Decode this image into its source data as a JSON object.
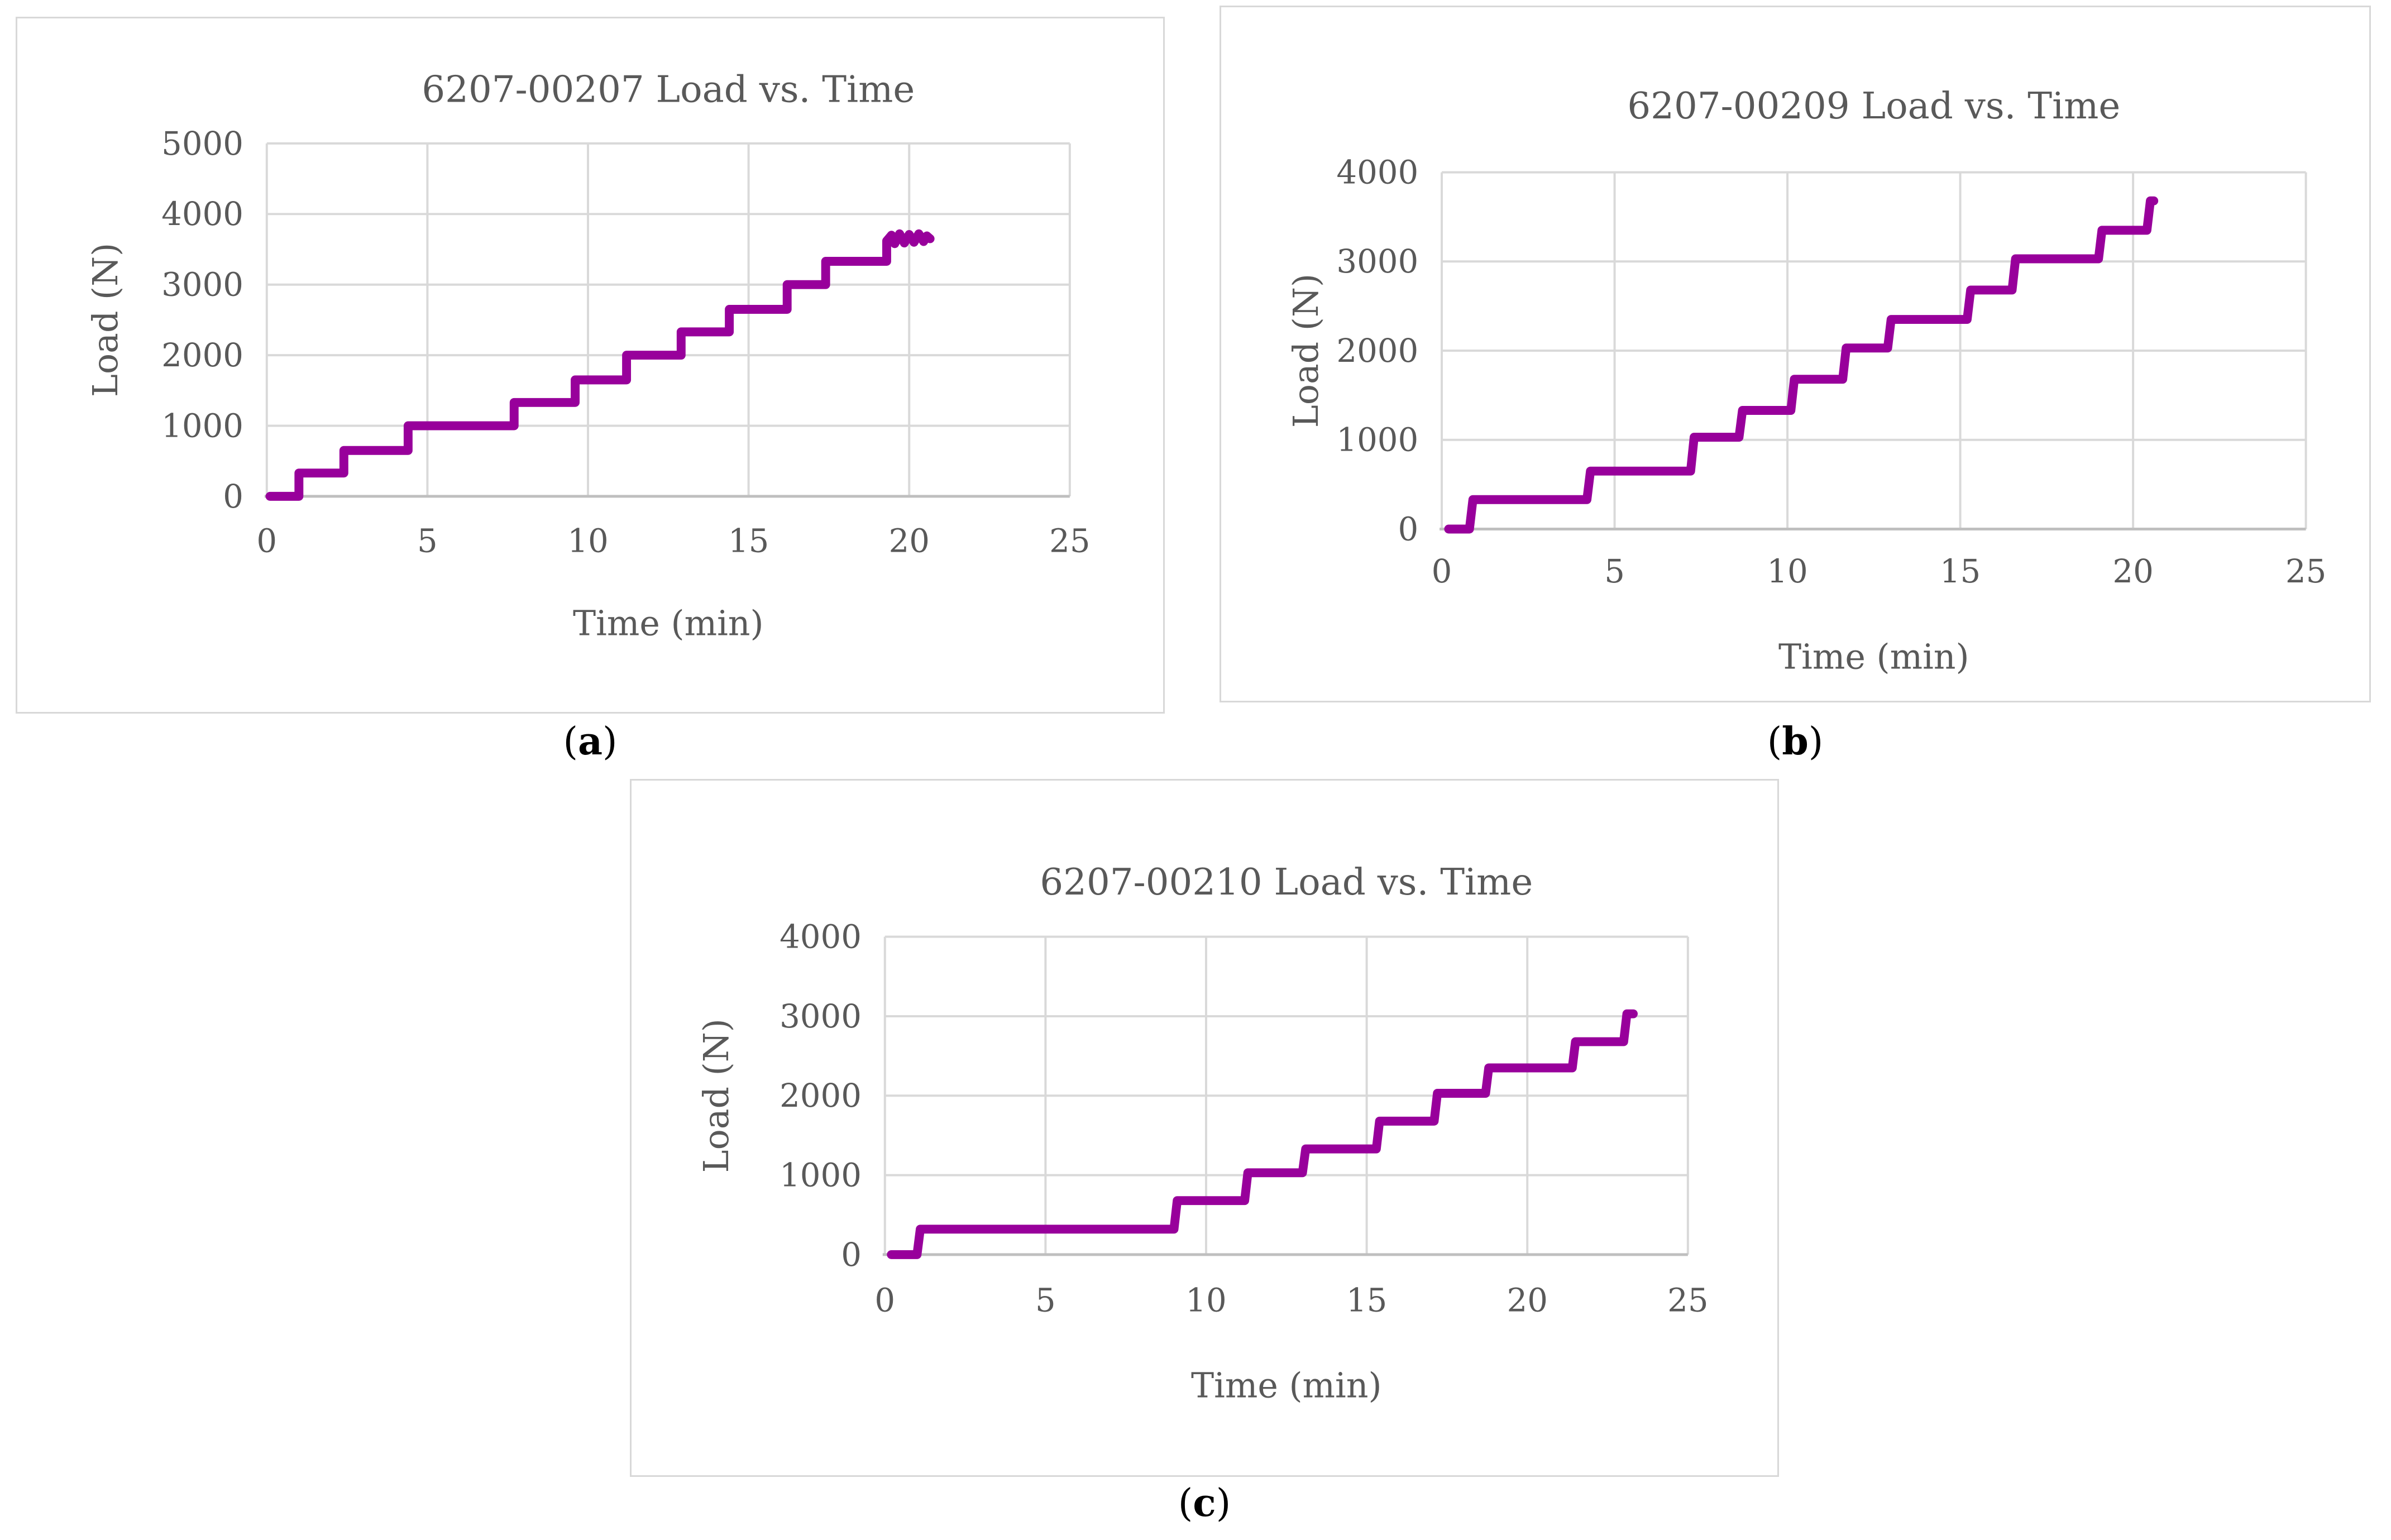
{
  "style": {
    "text_color": "#595959",
    "grid_color": "#d9d9d9",
    "axis_color": "#bfbfbf",
    "panel_border_color": "#d8d8d8",
    "background": "#ffffff"
  },
  "chart_data": [
    {
      "type": "line",
      "title": "6207-00207 Load vs. Time",
      "xlabel": "Time (min)",
      "ylabel": "Load (N)",
      "xlim": [
        0,
        25
      ],
      "ylim": [
        0,
        5000
      ],
      "xticks": [
        0,
        5,
        10,
        15,
        20,
        25
      ],
      "yticks": [
        0,
        1000,
        2000,
        3000,
        4000,
        5000
      ],
      "grid": true,
      "legend": "none",
      "line_color": "#98009b",
      "caption_open": "(",
      "caption_letter": "a",
      "caption_close": ")",
      "points": [
        [
          0.1,
          0
        ],
        [
          1.0,
          0
        ],
        [
          1.0,
          330
        ],
        [
          2.4,
          330
        ],
        [
          2.4,
          650
        ],
        [
          4.4,
          650
        ],
        [
          4.4,
          1000
        ],
        [
          7.7,
          1000
        ],
        [
          7.7,
          1330
        ],
        [
          9.6,
          1330
        ],
        [
          9.6,
          1650
        ],
        [
          11.2,
          1650
        ],
        [
          11.2,
          2000
        ],
        [
          12.9,
          2000
        ],
        [
          12.9,
          2330
        ],
        [
          14.4,
          2330
        ],
        [
          14.4,
          2650
        ],
        [
          16.2,
          2650
        ],
        [
          16.2,
          3000
        ],
        [
          17.4,
          3000
        ],
        [
          17.4,
          3330
        ],
        [
          19.3,
          3330
        ],
        [
          19.3,
          3620
        ],
        [
          19.45,
          3700
        ],
        [
          19.55,
          3580
        ],
        [
          19.7,
          3720
        ],
        [
          19.85,
          3590
        ],
        [
          20.0,
          3710
        ],
        [
          20.15,
          3600
        ],
        [
          20.3,
          3720
        ],
        [
          20.45,
          3610
        ],
        [
          20.55,
          3690
        ],
        [
          20.65,
          3650
        ]
      ]
    },
    {
      "type": "line",
      "title": "6207-00209 Load vs. Time",
      "xlabel": "Time (min)",
      "ylabel": "Load (N)",
      "xlim": [
        0,
        25
      ],
      "ylim": [
        0,
        4000
      ],
      "xticks": [
        0,
        5,
        10,
        15,
        20,
        25
      ],
      "yticks": [
        0,
        1000,
        2000,
        3000,
        4000
      ],
      "grid": true,
      "legend": "none",
      "line_color": "#98009b",
      "caption_open": "(",
      "caption_letter": "b",
      "caption_close": ")",
      "points": [
        [
          0.2,
          0
        ],
        [
          0.8,
          0
        ],
        [
          0.9,
          330
        ],
        [
          4.2,
          330
        ],
        [
          4.3,
          650
        ],
        [
          7.2,
          650
        ],
        [
          7.3,
          1030
        ],
        [
          8.6,
          1030
        ],
        [
          8.7,
          1330
        ],
        [
          10.1,
          1330
        ],
        [
          10.2,
          1680
        ],
        [
          11.6,
          1680
        ],
        [
          11.7,
          2030
        ],
        [
          12.9,
          2030
        ],
        [
          13.0,
          2350
        ],
        [
          15.2,
          2350
        ],
        [
          15.3,
          2680
        ],
        [
          16.5,
          2680
        ],
        [
          16.6,
          3030
        ],
        [
          19.0,
          3030
        ],
        [
          19.1,
          3350
        ],
        [
          20.4,
          3350
        ],
        [
          20.5,
          3680
        ],
        [
          20.6,
          3680
        ]
      ]
    },
    {
      "type": "line",
      "title": "6207-00210 Load vs. Time",
      "xlabel": "Time (min)",
      "ylabel": "Load (N)",
      "xlim": [
        0,
        25
      ],
      "ylim": [
        0,
        4000
      ],
      "xticks": [
        0,
        5,
        10,
        15,
        20,
        25
      ],
      "yticks": [
        0,
        1000,
        2000,
        3000,
        4000
      ],
      "grid": true,
      "legend": "none",
      "line_color": "#98009b",
      "caption_open": "(",
      "caption_letter": "c",
      "caption_close": ")",
      "points": [
        [
          0.2,
          0
        ],
        [
          1.0,
          0
        ],
        [
          1.1,
          320
        ],
        [
          9.0,
          320
        ],
        [
          9.1,
          680
        ],
        [
          11.2,
          680
        ],
        [
          11.3,
          1030
        ],
        [
          13.0,
          1030
        ],
        [
          13.1,
          1330
        ],
        [
          15.3,
          1330
        ],
        [
          15.4,
          1680
        ],
        [
          17.1,
          1680
        ],
        [
          17.2,
          2030
        ],
        [
          18.7,
          2030
        ],
        [
          18.8,
          2350
        ],
        [
          21.4,
          2350
        ],
        [
          21.5,
          2680
        ],
        [
          23.0,
          2680
        ],
        [
          23.1,
          3030
        ],
        [
          23.3,
          3030
        ]
      ]
    }
  ]
}
